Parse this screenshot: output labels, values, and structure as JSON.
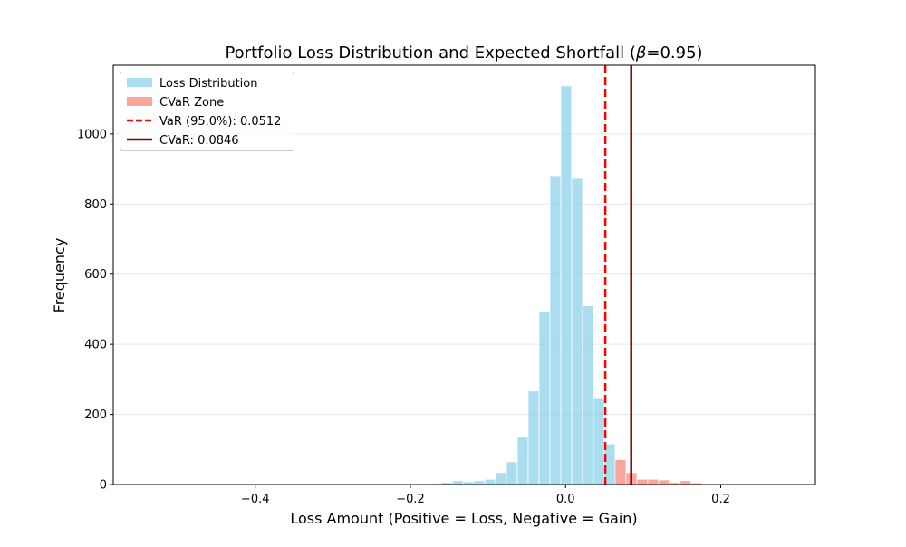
{
  "chart_data": {
    "type": "bar",
    "title_prefix": "Portfolio Loss Distribution and Expected Shortfall (",
    "title_symbol": "β",
    "title_suffix": "=0.95)",
    "xlabel": "Loss Amount (Positive = Loss, Negative = Gain)",
    "ylabel": "Frequency",
    "xlim": [
      -0.583,
      0.322
    ],
    "ylim": [
      0,
      1196
    ],
    "xticks": [
      -0.4,
      -0.2,
      0.0,
      0.2
    ],
    "xtick_labels": [
      "−0.4",
      "−0.2",
      "0.0",
      "0.2"
    ],
    "yticks": [
      0,
      200,
      400,
      600,
      800,
      1000
    ],
    "ytick_labels": [
      "0",
      "200",
      "400",
      "600",
      "800",
      "1000"
    ],
    "grid": "horizontal",
    "legend_placement": "top-left",
    "bin_width": 0.014,
    "series": [
      {
        "name": "Loss Distribution",
        "color": "#87CEEB",
        "bin_left_edges": [
          -0.5522,
          -0.1882,
          -0.1742,
          -0.1602,
          -0.1462,
          -0.1322,
          -0.1182,
          -0.1042,
          -0.0902,
          -0.0762,
          -0.0622,
          -0.0482,
          -0.0342,
          -0.0202,
          -0.0062,
          0.0078,
          0.0218,
          0.0358,
          0.0498
        ],
        "counts": [
          1,
          1,
          3,
          6,
          11,
          8,
          11,
          15,
          34,
          65,
          135,
          267,
          493,
          881,
          1137,
          873,
          510,
          245,
          116
        ]
      },
      {
        "name": "CVaR Zone",
        "color": "#FA8072",
        "bin_left_edges": [
          0.0638,
          0.0778,
          0.0918,
          0.1058,
          0.1198,
          0.1338,
          0.1478,
          0.1618,
          0.1758,
          0.2738
        ],
        "counts": [
          71,
          34,
          15,
          15,
          13,
          6,
          11,
          5,
          2,
          1
        ]
      }
    ],
    "lines": [
      {
        "name": "VaR (95.0%): 0.0512",
        "x": 0.0512,
        "color": "#FF0000",
        "style": "dashed"
      },
      {
        "name": "CVaR: 0.0846",
        "x": 0.0846,
        "color": "#8B0000",
        "style": "solid"
      }
    ]
  }
}
